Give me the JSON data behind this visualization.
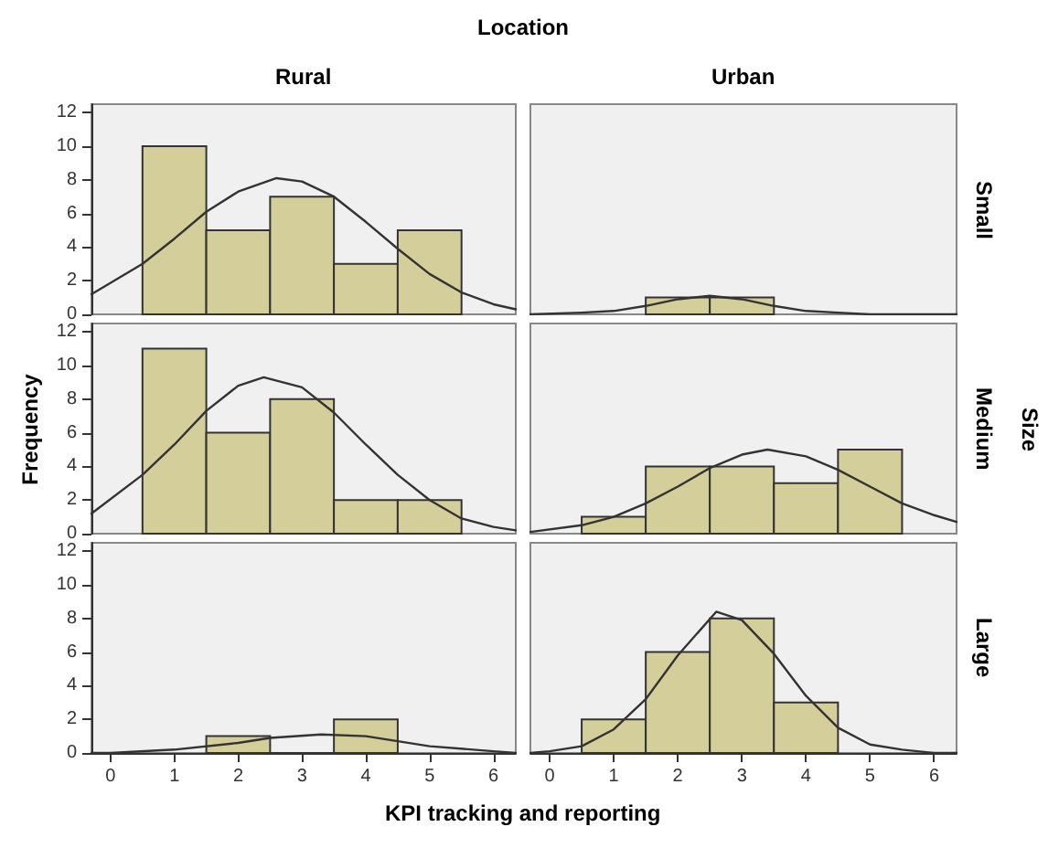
{
  "chart_data": [
    {
      "type": "histogram",
      "title": "Rural",
      "annotations": [
        "Location"
      ],
      "xlim": [
        -0.3,
        6.35
      ],
      "xticks": [
        0,
        1,
        2,
        3,
        4,
        5,
        6
      ],
      "ylim": [
        0,
        12.5
      ],
      "yticks": [
        0,
        2,
        4,
        6,
        8,
        10,
        12
      ],
      "tick_labels": "y",
      "grid": false,
      "series": [
        {
          "type": "histogram",
          "color": "#d3ce9a",
          "bins": [
            0.5,
            1.5,
            2.5,
            3.5,
            4.5,
            5.5
          ],
          "values": [
            10,
            5,
            7,
            3,
            5
          ]
        },
        {
          "type": "line",
          "color": "#333333",
          "x": [
            -0.3,
            0.5,
            1,
            1.5,
            2,
            2.6,
            3,
            3.5,
            4,
            4.5,
            5,
            5.5,
            6,
            6.35
          ],
          "values": [
            1.2,
            3.0,
            4.5,
            6.1,
            7.3,
            8.1,
            7.9,
            7.0,
            5.5,
            3.9,
            2.4,
            1.3,
            0.6,
            0.3
          ]
        }
      ]
    },
    {
      "type": "histogram",
      "title": "Urban",
      "annotations": [
        "Small"
      ],
      "xlim": [
        -0.3,
        6.35
      ],
      "xticks": [
        0,
        1,
        2,
        3,
        4,
        5,
        6
      ],
      "ylim": [
        0,
        12.5
      ],
      "yticks": [
        0,
        2,
        4,
        6,
        8,
        10,
        12
      ],
      "tick_labels": false,
      "grid": false,
      "series": [
        {
          "type": "histogram",
          "color": "#d3ce9a",
          "bins": [
            1.5,
            2.5,
            3.5
          ],
          "values": [
            1,
            1
          ]
        },
        {
          "type": "line",
          "color": "#333333",
          "x": [
            -0.3,
            0.5,
            1,
            1.5,
            2,
            2.5,
            3,
            3.5,
            4,
            4.5,
            5,
            6.35
          ],
          "values": [
            0,
            0.1,
            0.2,
            0.5,
            0.9,
            1.1,
            0.9,
            0.5,
            0.2,
            0.1,
            0,
            0
          ]
        }
      ]
    },
    {
      "type": "histogram",
      "ylabel": "Frequency",
      "xlim": [
        -0.3,
        6.35
      ],
      "xticks": [
        0,
        1,
        2,
        3,
        4,
        5,
        6
      ],
      "ylim": [
        0,
        12.5
      ],
      "yticks": [
        0,
        2,
        4,
        6,
        8,
        10,
        12
      ],
      "tick_labels": "y",
      "grid": false,
      "series": [
        {
          "type": "histogram",
          "color": "#d3ce9a",
          "bins": [
            0.5,
            1.5,
            2.5,
            3.5,
            4.5,
            5.5
          ],
          "values": [
            11,
            6,
            8,
            2,
            2
          ]
        },
        {
          "type": "line",
          "color": "#333333",
          "x": [
            -0.3,
            0.5,
            1,
            1.5,
            2,
            2.4,
            3,
            3.5,
            4,
            4.5,
            5,
            5.5,
            6,
            6.35
          ],
          "values": [
            1.2,
            3.5,
            5.3,
            7.3,
            8.8,
            9.3,
            8.7,
            7.2,
            5.3,
            3.5,
            2.0,
            0.9,
            0.4,
            0.2
          ]
        }
      ]
    },
    {
      "type": "histogram",
      "annotations": [
        "Medium",
        "Size"
      ],
      "xlim": [
        -0.3,
        6.35
      ],
      "xticks": [
        0,
        1,
        2,
        3,
        4,
        5,
        6
      ],
      "ylim": [
        0,
        12.5
      ],
      "yticks": [
        0,
        2,
        4,
        6,
        8,
        10,
        12
      ],
      "tick_labels": false,
      "grid": false,
      "series": [
        {
          "type": "histogram",
          "color": "#d3ce9a",
          "bins": [
            0.5,
            1.5,
            2.5,
            3.5,
            4.5,
            5.5
          ],
          "values": [
            1,
            4,
            4,
            3,
            5
          ]
        },
        {
          "type": "line",
          "color": "#333333",
          "x": [
            -0.3,
            0.5,
            1,
            1.5,
            2,
            2.5,
            3,
            3.4,
            4,
            4.5,
            5,
            5.5,
            6,
            6.35
          ],
          "values": [
            0.1,
            0.5,
            1.0,
            1.8,
            2.8,
            3.9,
            4.7,
            5.0,
            4.6,
            3.8,
            2.8,
            1.8,
            1.1,
            0.7
          ]
        }
      ]
    },
    {
      "type": "histogram",
      "xlabel": "KPI tracking and reporting",
      "xlim": [
        -0.3,
        6.35
      ],
      "xticks": [
        0,
        1,
        2,
        3,
        4,
        5,
        6
      ],
      "ylim": [
        0,
        12.5
      ],
      "yticks": [
        0,
        2,
        4,
        6,
        8,
        10,
        12
      ],
      "grid": false,
      "series": [
        {
          "type": "histogram",
          "color": "#d3ce9a",
          "bins": [
            1.5,
            2.5,
            3.5,
            4.5
          ],
          "values": [
            1,
            0,
            2
          ]
        },
        {
          "type": "line",
          "color": "#333333",
          "x": [
            -0.3,
            0,
            1,
            2,
            2.5,
            3.3,
            4,
            4.5,
            5,
            6,
            6.35
          ],
          "values": [
            0,
            0,
            0.2,
            0.6,
            0.9,
            1.1,
            1.0,
            0.7,
            0.4,
            0.1,
            0
          ]
        }
      ]
    },
    {
      "type": "histogram",
      "annotations": [
        "Large"
      ],
      "xlim": [
        -0.3,
        6.35
      ],
      "xticks": [
        0,
        1,
        2,
        3,
        4,
        5,
        6
      ],
      "ylim": [
        0,
        12.5
      ],
      "yticks": [
        0,
        2,
        4,
        6,
        8,
        10,
        12
      ],
      "tick_labels": "x",
      "grid": false,
      "series": [
        {
          "type": "histogram",
          "color": "#d3ce9a",
          "bins": [
            0.5,
            1.5,
            2.5,
            3.5,
            4.5
          ],
          "values": [
            2,
            6,
            8,
            3
          ]
        },
        {
          "type": "line",
          "color": "#333333",
          "x": [
            -0.3,
            0,
            0.5,
            1,
            1.5,
            2,
            2.6,
            3,
            3.5,
            4,
            4.5,
            5,
            5.5,
            6,
            6.35
          ],
          "values": [
            0,
            0.1,
            0.4,
            1.4,
            3.2,
            5.8,
            8.4,
            7.9,
            5.9,
            3.4,
            1.5,
            0.5,
            0.2,
            0,
            0
          ]
        }
      ]
    }
  ]
}
